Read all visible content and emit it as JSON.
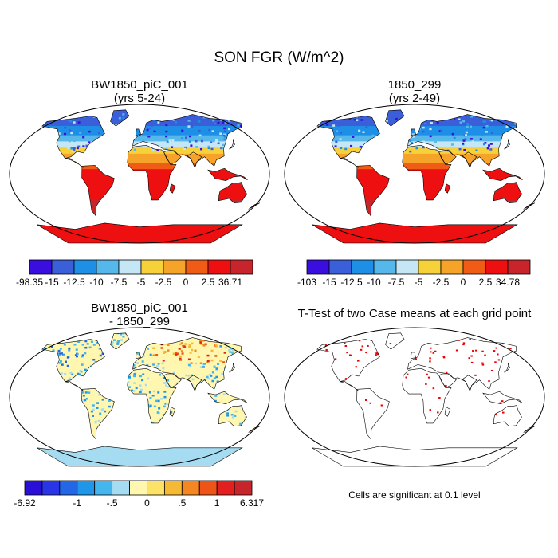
{
  "title": "SON FGR (W/m^2)",
  "panels": [
    {
      "id": "case",
      "title_line1": "BW1850_piC_001",
      "title_line2": "(yrs 5-24)",
      "colorbar": {
        "colors": [
          "#3b0ee0",
          "#3a5fd9",
          "#1e8fe6",
          "#56b7ea",
          "#c5e6f5",
          "#f7d13a",
          "#f6a32a",
          "#f05c16",
          "#ee1010",
          "#c8242b"
        ],
        "labels": [
          "-98.35",
          "-15",
          "-12.5",
          "-10",
          "-7.5",
          "-5",
          "-2.5",
          "0",
          "2.5",
          "36.71"
        ]
      }
    },
    {
      "id": "control",
      "title_line1": "1850_299",
      "title_line2": "(yrs 2-49)",
      "colorbar": {
        "colors": [
          "#3b0ee0",
          "#3a5fd9",
          "#1e8fe6",
          "#56b7ea",
          "#c5e6f5",
          "#f7d13a",
          "#f6a32a",
          "#f05c16",
          "#ee1010",
          "#c8242b"
        ],
        "labels": [
          "-103",
          "-15",
          "-12.5",
          "-10",
          "-7.5",
          "-5",
          "-2.5",
          "0",
          "2.5",
          "34.78"
        ]
      }
    },
    {
      "id": "difference",
      "title_line1": "BW1850_piC_001",
      "title_line2": "- 1850_299",
      "colorbar": {
        "colors": [
          "#2a0fd8",
          "#2a35e8",
          "#2467e6",
          "#1f96e8",
          "#43b6ee",
          "#a6dcf2",
          "#fff6b0",
          "#fde268",
          "#f6b934",
          "#f48722",
          "#ee5417",
          "#e31f1f",
          "#c8242b"
        ],
        "labels": [
          "-6.92",
          "",
          "",
          "-1",
          "",
          "-.5",
          "",
          "0",
          "",
          ".5",
          "",
          "1",
          "",
          "6.317"
        ]
      }
    },
    {
      "id": "ttest",
      "title_line1": "T-Test of two Case means at each grid point",
      "note": "Cells are significant at 0.1 level"
    }
  ],
  "map_colors": {
    "ocean": "#ffffff",
    "outline": "#000000",
    "significant": "#ee0000",
    "antarctica_case": "#ee1010",
    "antarctica_diff": "#a6dcf2"
  }
}
